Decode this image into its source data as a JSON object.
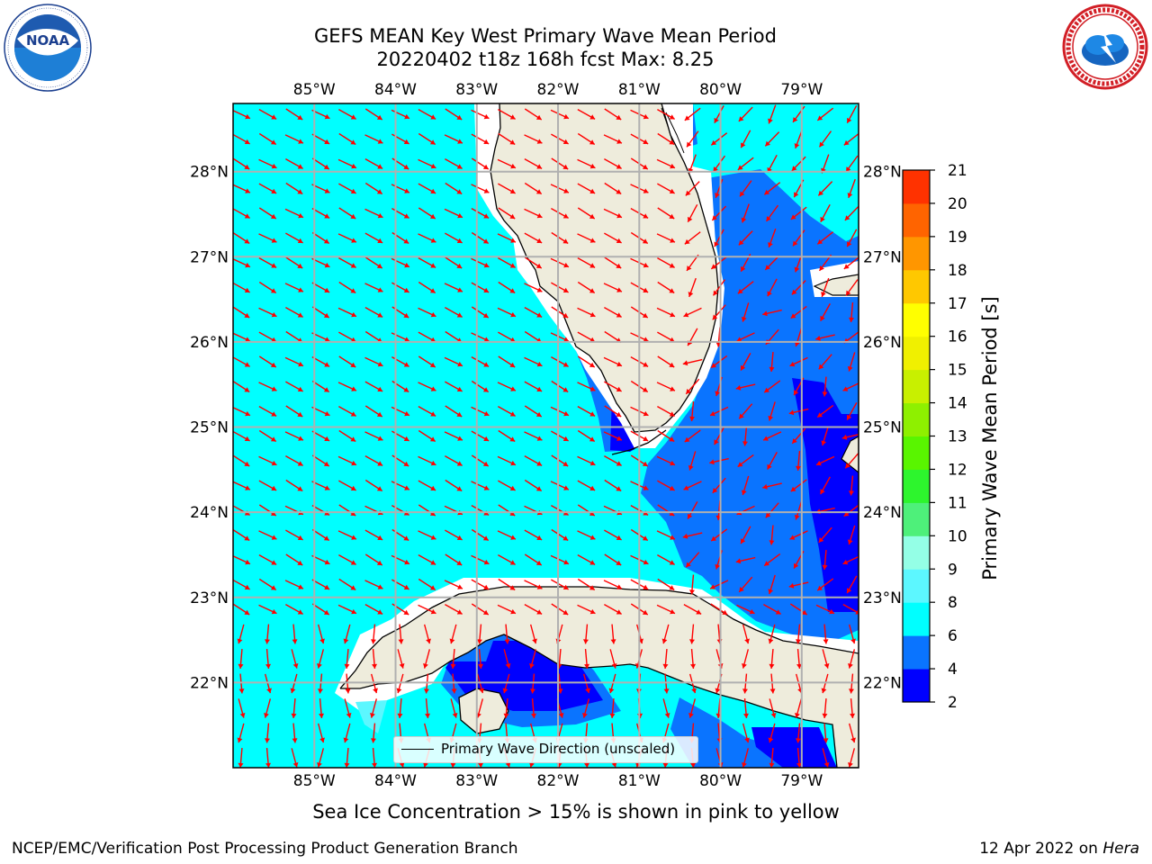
{
  "title": {
    "line1": "GEFS MEAN Key West Primary Wave Mean Period",
    "line2": "20220402 t18z 168h fcst   Max: 8.25"
  },
  "logos": {
    "left": {
      "name": "noaa-logo",
      "text": "NOAA",
      "ring_text": "NATIONAL OCEANIC AND ATMOSPHERIC ADMINISTRATION · U.S. DEPARTMENT OF COMMERCE"
    },
    "right": {
      "name": "nws-logo",
      "ring_text": "NATIONAL WEATHER SERVICE"
    }
  },
  "map": {
    "lon_ticks": [
      "85°W",
      "84°W",
      "83°W",
      "82°W",
      "81°W",
      "80°W",
      "79°W"
    ],
    "lat_ticks": [
      "28°N",
      "27°N",
      "26°N",
      "25°N",
      "24°N",
      "23°N",
      "22°N"
    ],
    "lon_range": [
      -86.0,
      -78.3
    ],
    "lat_range": [
      21.0,
      28.8
    ],
    "land_color": "#eeecdc",
    "grid_color": "#b0b0b0",
    "arrow_color": "#ff0000"
  },
  "legend": {
    "label": "Primary Wave Direction (unscaled)"
  },
  "colorbar": {
    "label": "Primary Wave Mean Period [s]",
    "ticks": [
      "2",
      "4",
      "6",
      "8",
      "9",
      "10",
      "11",
      "12",
      "13",
      "14",
      "15",
      "16",
      "17",
      "18",
      "19",
      "20",
      "21"
    ],
    "colors": [
      "#0000ff",
      "#0a74ff",
      "#00ffff",
      "#5cf7ff",
      "#94ffe6",
      "#4ef07a",
      "#2df52d",
      "#59f500",
      "#8ef000",
      "#c8f000",
      "#f0f000",
      "#ffff00",
      "#ffc800",
      "#ff9600",
      "#ff6400",
      "#ff3200",
      "#ff0000"
    ]
  },
  "note": "Sea Ice Concentration > 15% is shown in pink to yellow",
  "footer": {
    "left": "NCEP/EMC/Verification Post Processing Product Generation Branch",
    "right_date": "12 Apr 2022 on ",
    "right_host": "Hera"
  }
}
